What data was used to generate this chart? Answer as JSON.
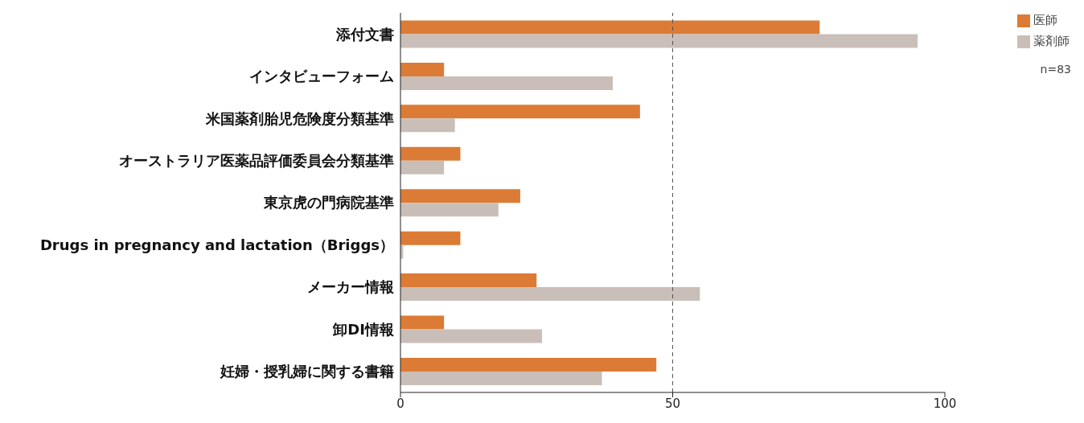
{
  "chart_data": {
    "type": "bar",
    "orientation": "horizontal",
    "categories": [
      "添付文書",
      "インタビューフォーム",
      "米国薬剤胎児危険度分類基準",
      "オーストラリア医薬品評価委員会分類基準",
      "東京虎の門病院基準",
      "Drugs in pregnancy and lactation（Briggs）",
      "メーカー情報",
      "卸DI情報",
      "妊婦・授乳婦に関する書籍"
    ],
    "series": [
      {
        "name": "医師",
        "color": "#dc7b35",
        "values": [
          77,
          8,
          44,
          11,
          22,
          11,
          25,
          8,
          47
        ]
      },
      {
        "name": "薬剤師",
        "color": "#c9bfb8",
        "values": [
          95,
          39,
          10,
          8,
          18,
          0.5,
          55,
          26,
          37
        ]
      }
    ],
    "xlim": [
      0,
      100
    ],
    "xticks": [
      0,
      50,
      100
    ],
    "ref_lines": [
      {
        "axis": "x",
        "value": 50,
        "color": "#555555",
        "line_style": "dashed"
      }
    ],
    "legend": "top right",
    "grid": false,
    "annotations": [
      "n=83"
    ]
  }
}
